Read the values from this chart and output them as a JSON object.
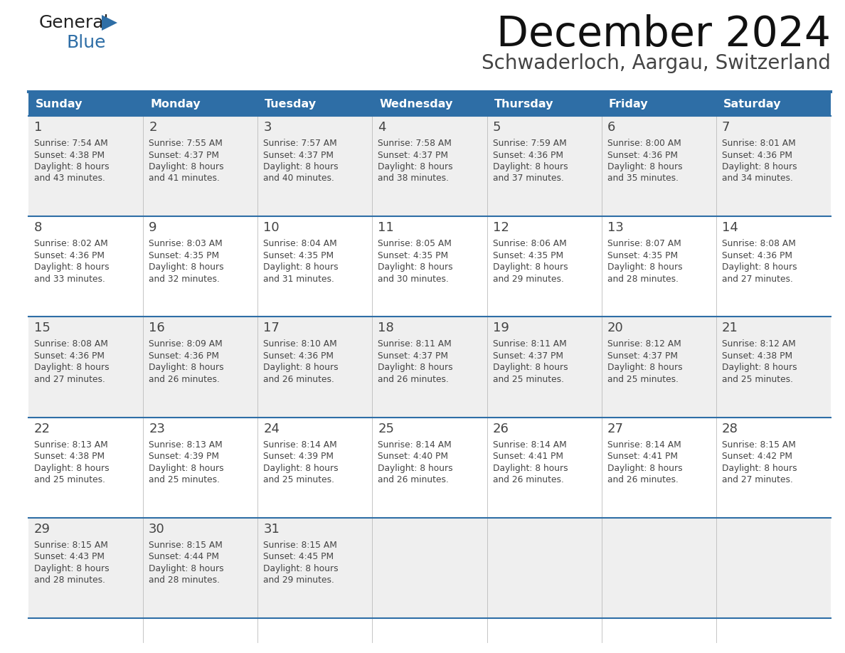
{
  "title": "December 2024",
  "subtitle": "Schwaderloch, Aargau, Switzerland",
  "header_color": "#2E6EA6",
  "header_text_color": "#FFFFFF",
  "weekdays": [
    "Sunday",
    "Monday",
    "Tuesday",
    "Wednesday",
    "Thursday",
    "Friday",
    "Saturday"
  ],
  "bg_color": "#FFFFFF",
  "cell_bg_even": "#EFEFEF",
  "cell_bg_odd": "#FFFFFF",
  "row_line_color": "#2E6EA6",
  "text_color": "#444444",
  "days": [
    {
      "day": 1,
      "col": 0,
      "row": 0,
      "sunrise": "7:54 AM",
      "sunset": "4:38 PM",
      "daylight": "8 hours and 43 minutes."
    },
    {
      "day": 2,
      "col": 1,
      "row": 0,
      "sunrise": "7:55 AM",
      "sunset": "4:37 PM",
      "daylight": "8 hours and 41 minutes."
    },
    {
      "day": 3,
      "col": 2,
      "row": 0,
      "sunrise": "7:57 AM",
      "sunset": "4:37 PM",
      "daylight": "8 hours and 40 minutes."
    },
    {
      "day": 4,
      "col": 3,
      "row": 0,
      "sunrise": "7:58 AM",
      "sunset": "4:37 PM",
      "daylight": "8 hours and 38 minutes."
    },
    {
      "day": 5,
      "col": 4,
      "row": 0,
      "sunrise": "7:59 AM",
      "sunset": "4:36 PM",
      "daylight": "8 hours and 37 minutes."
    },
    {
      "day": 6,
      "col": 5,
      "row": 0,
      "sunrise": "8:00 AM",
      "sunset": "4:36 PM",
      "daylight": "8 hours and 35 minutes."
    },
    {
      "day": 7,
      "col": 6,
      "row": 0,
      "sunrise": "8:01 AM",
      "sunset": "4:36 PM",
      "daylight": "8 hours and 34 minutes."
    },
    {
      "day": 8,
      "col": 0,
      "row": 1,
      "sunrise": "8:02 AM",
      "sunset": "4:36 PM",
      "daylight": "8 hours and 33 minutes."
    },
    {
      "day": 9,
      "col": 1,
      "row": 1,
      "sunrise": "8:03 AM",
      "sunset": "4:35 PM",
      "daylight": "8 hours and 32 minutes."
    },
    {
      "day": 10,
      "col": 2,
      "row": 1,
      "sunrise": "8:04 AM",
      "sunset": "4:35 PM",
      "daylight": "8 hours and 31 minutes."
    },
    {
      "day": 11,
      "col": 3,
      "row": 1,
      "sunrise": "8:05 AM",
      "sunset": "4:35 PM",
      "daylight": "8 hours and 30 minutes."
    },
    {
      "day": 12,
      "col": 4,
      "row": 1,
      "sunrise": "8:06 AM",
      "sunset": "4:35 PM",
      "daylight": "8 hours and 29 minutes."
    },
    {
      "day": 13,
      "col": 5,
      "row": 1,
      "sunrise": "8:07 AM",
      "sunset": "4:35 PM",
      "daylight": "8 hours and 28 minutes."
    },
    {
      "day": 14,
      "col": 6,
      "row": 1,
      "sunrise": "8:08 AM",
      "sunset": "4:36 PM",
      "daylight": "8 hours and 27 minutes."
    },
    {
      "day": 15,
      "col": 0,
      "row": 2,
      "sunrise": "8:08 AM",
      "sunset": "4:36 PM",
      "daylight": "8 hours and 27 minutes."
    },
    {
      "day": 16,
      "col": 1,
      "row": 2,
      "sunrise": "8:09 AM",
      "sunset": "4:36 PM",
      "daylight": "8 hours and 26 minutes."
    },
    {
      "day": 17,
      "col": 2,
      "row": 2,
      "sunrise": "8:10 AM",
      "sunset": "4:36 PM",
      "daylight": "8 hours and 26 minutes."
    },
    {
      "day": 18,
      "col": 3,
      "row": 2,
      "sunrise": "8:11 AM",
      "sunset": "4:37 PM",
      "daylight": "8 hours and 26 minutes."
    },
    {
      "day": 19,
      "col": 4,
      "row": 2,
      "sunrise": "8:11 AM",
      "sunset": "4:37 PM",
      "daylight": "8 hours and 25 minutes."
    },
    {
      "day": 20,
      "col": 5,
      "row": 2,
      "sunrise": "8:12 AM",
      "sunset": "4:37 PM",
      "daylight": "8 hours and 25 minutes."
    },
    {
      "day": 21,
      "col": 6,
      "row": 2,
      "sunrise": "8:12 AM",
      "sunset": "4:38 PM",
      "daylight": "8 hours and 25 minutes."
    },
    {
      "day": 22,
      "col": 0,
      "row": 3,
      "sunrise": "8:13 AM",
      "sunset": "4:38 PM",
      "daylight": "8 hours and 25 minutes."
    },
    {
      "day": 23,
      "col": 1,
      "row": 3,
      "sunrise": "8:13 AM",
      "sunset": "4:39 PM",
      "daylight": "8 hours and 25 minutes."
    },
    {
      "day": 24,
      "col": 2,
      "row": 3,
      "sunrise": "8:14 AM",
      "sunset": "4:39 PM",
      "daylight": "8 hours and 25 minutes."
    },
    {
      "day": 25,
      "col": 3,
      "row": 3,
      "sunrise": "8:14 AM",
      "sunset": "4:40 PM",
      "daylight": "8 hours and 26 minutes."
    },
    {
      "day": 26,
      "col": 4,
      "row": 3,
      "sunrise": "8:14 AM",
      "sunset": "4:41 PM",
      "daylight": "8 hours and 26 minutes."
    },
    {
      "day": 27,
      "col": 5,
      "row": 3,
      "sunrise": "8:14 AM",
      "sunset": "4:41 PM",
      "daylight": "8 hours and 26 minutes."
    },
    {
      "day": 28,
      "col": 6,
      "row": 3,
      "sunrise": "8:15 AM",
      "sunset": "4:42 PM",
      "daylight": "8 hours and 27 minutes."
    },
    {
      "day": 29,
      "col": 0,
      "row": 4,
      "sunrise": "8:15 AM",
      "sunset": "4:43 PM",
      "daylight": "8 hours and 28 minutes."
    },
    {
      "day": 30,
      "col": 1,
      "row": 4,
      "sunrise": "8:15 AM",
      "sunset": "4:44 PM",
      "daylight": "8 hours and 28 minutes."
    },
    {
      "day": 31,
      "col": 2,
      "row": 4,
      "sunrise": "8:15 AM",
      "sunset": "4:45 PM",
      "daylight": "8 hours and 29 minutes."
    }
  ],
  "num_rows": 5,
  "logo_general_color": "#222222",
  "logo_blue_color": "#2E6EA6",
  "fig_width": 11.88,
  "fig_height": 9.18,
  "dpi": 100
}
